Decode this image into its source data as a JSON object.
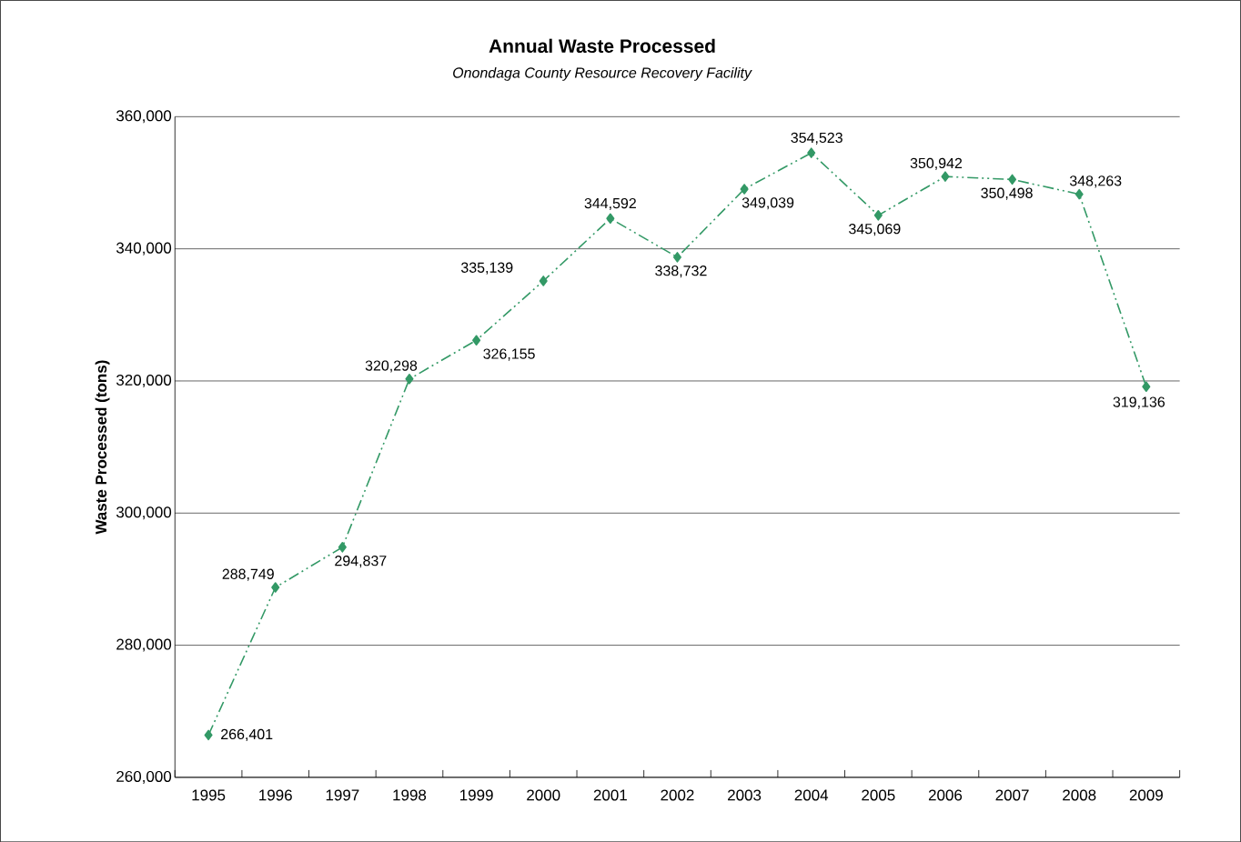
{
  "chart_data": {
    "type": "line",
    "title": "Annual Waste Processed",
    "subtitle": "*Onondaga County Resource Recovery Facility*",
    "ylabel": "Waste Processed (tons)",
    "categories": [
      "1995",
      "1996",
      "1997",
      "1998",
      "1999",
      "2000",
      "2001",
      "2002",
      "2003",
      "2004",
      "2005",
      "2006",
      "2007",
      "2008",
      "2009"
    ],
    "values": [
      266401,
      288749,
      294837,
      320298,
      326155,
      335139,
      344592,
      338732,
      349039,
      354523,
      345069,
      350942,
      350498,
      348263,
      319136
    ],
    "value_labels": [
      "266,401",
      "288,749",
      "294,837",
      "320,298",
      "326,155",
      "335,139",
      "344,592",
      "338,732",
      "349,039",
      "354,523",
      "345,069",
      "350,942",
      "350,498",
      "348,263",
      "319,136"
    ],
    "color": "#339966",
    "marker": "diamond",
    "line_style": "dashed",
    "grid": "y",
    "ylim": [
      260000,
      360000
    ],
    "yticks": [
      {
        "value": 260000,
        "label": "260,000"
      },
      {
        "value": 280000,
        "label": "280,000"
      },
      {
        "value": 300000,
        "label": "300,000"
      },
      {
        "value": 320000,
        "label": "320,000"
      },
      {
        "value": 340000,
        "label": "340,000"
      },
      {
        "value": 360000,
        "label": "360,000"
      }
    ]
  }
}
